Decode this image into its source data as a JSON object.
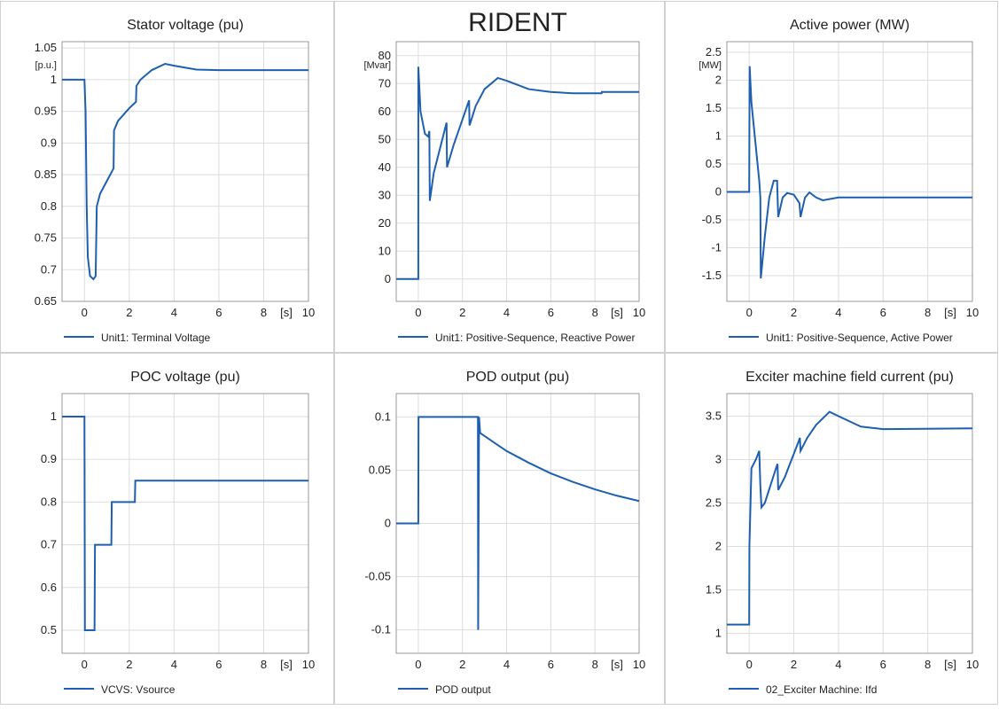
{
  "chart_data": [
    {
      "type": "line",
      "title": "Stator voltage (pu)",
      "y_unit": "[p.u.]",
      "x_label": "[s]",
      "xlim": [
        -1,
        10
      ],
      "xticks": [
        0,
        2,
        4,
        6,
        8,
        10
      ],
      "ylim": [
        0.65,
        1.06
      ],
      "yticks": [
        0.65,
        0.7,
        0.75,
        0.8,
        0.85,
        0.9,
        0.95,
        1,
        1.05
      ],
      "grid": true,
      "x": [
        -1,
        0,
        0.05,
        0.1,
        0.15,
        0.25,
        0.4,
        0.5,
        0.55,
        0.7,
        1.0,
        1.3,
        1.32,
        1.5,
        2.0,
        2.3,
        2.32,
        2.5,
        3.0,
        3.6,
        4.0,
        5.0,
        6.0,
        10
      ],
      "series": [
        {
          "name": "Unit1: Terminal Voltage",
          "color": "#1f5fb0",
          "values": [
            1,
            1,
            0.95,
            0.8,
            0.72,
            0.69,
            0.685,
            0.69,
            0.8,
            0.82,
            0.84,
            0.86,
            0.92,
            0.935,
            0.955,
            0.965,
            0.99,
            1.0,
            1.015,
            1.025,
            1.022,
            1.016,
            1.015,
            1.015
          ]
        }
      ]
    },
    {
      "type": "line",
      "title": "RIDENT",
      "y_unit": "[Mvar]",
      "x_label": "[s]",
      "xlim": [
        -1,
        10
      ],
      "xticks": [
        0,
        2,
        4,
        6,
        8,
        10
      ],
      "ylim": [
        -8,
        85
      ],
      "yticks": [
        0,
        10,
        20,
        30,
        40,
        50,
        60,
        70,
        80
      ],
      "grid": true,
      "x": [
        -1,
        0,
        0.001,
        0.1,
        0.3,
        0.45,
        0.5,
        0.52,
        0.7,
        1.28,
        1.3,
        1.6,
        2.3,
        2.32,
        2.6,
        3.0,
        3.6,
        4.0,
        5.0,
        6.0,
        7.0,
        8.3,
        8.31,
        10
      ],
      "series": [
        {
          "name": "Unit1: Positive-Sequence, Reactive Power",
          "color": "#1f5fb0",
          "values": [
            0,
            0,
            76,
            60,
            52,
            51,
            53,
            28,
            38,
            56,
            40,
            48,
            64,
            55,
            62,
            68,
            72,
            71,
            68,
            67,
            66.5,
            66.5,
            67,
            67
          ]
        }
      ]
    },
    {
      "type": "line",
      "title": "Active power (MW)",
      "y_unit": "[MW]",
      "x_label": "[s]",
      "xlim": [
        -1,
        10
      ],
      "xticks": [
        0,
        2,
        4,
        6,
        8,
        10
      ],
      "ylim": [
        -1.96,
        2.69
      ],
      "yticks": [
        -1.5,
        -1,
        -0.5,
        0,
        0.5,
        1,
        1.5,
        2,
        2.5
      ],
      "grid": true,
      "x": [
        -1,
        0,
        0.02,
        0.1,
        0.3,
        0.45,
        0.5,
        0.52,
        0.7,
        0.9,
        1.1,
        1.25,
        1.3,
        1.5,
        1.7,
        2.0,
        2.25,
        2.3,
        2.5,
        2.7,
        3.0,
        3.3,
        4,
        6,
        10
      ],
      "series": [
        {
          "name": "Unit1: Positive-Sequence, Active Power",
          "color": "#1f5fb0",
          "values": [
            0,
            0,
            2.25,
            1.6,
            0.8,
            0.2,
            -0.1,
            -1.55,
            -0.8,
            -0.1,
            0.2,
            0.2,
            -0.45,
            -0.1,
            -0.02,
            -0.05,
            -0.2,
            -0.45,
            -0.1,
            -0.01,
            -0.1,
            -0.15,
            -0.1,
            -0.1,
            -0.1
          ]
        }
      ]
    },
    {
      "type": "line",
      "title": "POC voltage (pu)",
      "x_label": "[s]",
      "xlim": [
        -1,
        10
      ],
      "xticks": [
        0,
        2,
        4,
        6,
        8,
        10
      ],
      "ylim": [
        0.446,
        1.054
      ],
      "yticks": [
        0.5,
        0.6,
        0.7,
        0.8,
        0.9,
        1
      ],
      "grid": true,
      "x": [
        -1,
        0,
        0.02,
        0.45,
        0.47,
        1.2,
        1.22,
        2.25,
        2.27,
        10
      ],
      "series": [
        {
          "name": "VCVS: Vsource",
          "color": "#1f5fb0",
          "values": [
            1,
            1,
            0.5,
            0.5,
            0.7,
            0.7,
            0.8,
            0.8,
            0.85,
            0.85
          ]
        }
      ]
    },
    {
      "type": "line",
      "title": "POD output (pu)",
      "x_label": "[s]",
      "xlim": [
        -1,
        10
      ],
      "xticks": [
        0,
        2,
        4,
        6,
        8,
        10
      ],
      "ylim": [
        -0.122,
        0.122
      ],
      "yticks": [
        -0.1,
        -0.05,
        0,
        0.05,
        0.1
      ],
      "grid": true,
      "x": [
        -1,
        0,
        0.01,
        2.7,
        2.71,
        2.75,
        2.8,
        3.5,
        4,
        5,
        6,
        7,
        8,
        9,
        10
      ],
      "series": [
        {
          "name": "POD output",
          "color": "#1f5fb0",
          "values": [
            0,
            0,
            0.1,
            0.1,
            -0.1,
            0.1,
            0.085,
            0.075,
            0.068,
            0.057,
            0.047,
            0.039,
            0.032,
            0.026,
            0.021
          ]
        }
      ]
    },
    {
      "type": "line",
      "title": "Exciter machine field current (pu)",
      "x_label": "[s]",
      "xlim": [
        -1,
        10
      ],
      "xticks": [
        0,
        2,
        4,
        6,
        8,
        10
      ],
      "ylim": [
        0.77,
        3.76
      ],
      "yticks": [
        1,
        1.5,
        2,
        2.5,
        3,
        3.5
      ],
      "grid": true,
      "x": [
        -1,
        0,
        0.01,
        0.1,
        0.3,
        0.45,
        0.5,
        0.55,
        0.7,
        1.2,
        1.27,
        1.3,
        1.6,
        2.2,
        2.27,
        2.3,
        2.6,
        3.0,
        3.6,
        4.0,
        5.0,
        6.0,
        10
      ],
      "series": [
        {
          "name": "02_Exciter Machine: Ifd",
          "color": "#1f5fb0",
          "values": [
            1.1,
            1.1,
            2.0,
            2.9,
            3.0,
            3.1,
            2.7,
            2.45,
            2.5,
            2.9,
            2.95,
            2.65,
            2.8,
            3.2,
            3.25,
            3.1,
            3.25,
            3.4,
            3.55,
            3.5,
            3.38,
            3.35,
            3.36
          ]
        }
      ]
    }
  ]
}
